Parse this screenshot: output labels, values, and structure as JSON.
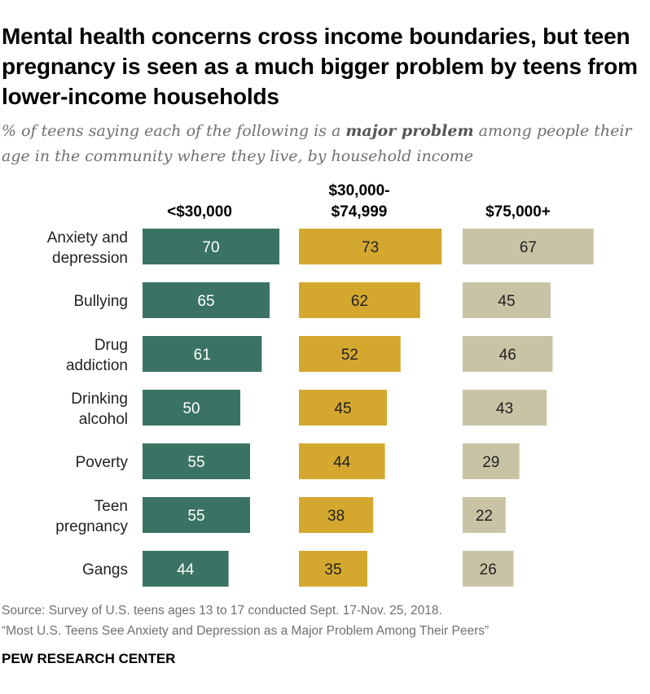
{
  "header": {
    "title": "Mental health concerns cross income boundaries, but teen pregnancy is seen as a much bigger problem by teens from lower-income households",
    "subtitle_pre": "% of teens saying each of the following is a ",
    "subtitle_emph": "major problem",
    "subtitle_post": " among people their age in the community where they live, by household income"
  },
  "footer": {
    "source_line1": "Source: Survey of U.S. teens ages 13 to 17 conducted Sept. 17-Nov. 25, 2018.",
    "source_line2": "“Most U.S. Teens See Anxiety and Depression as a Major Problem Among Their Peers”",
    "org": "PEW RESEARCH CENTER"
  },
  "chart_data": {
    "type": "bar",
    "orientation": "horizontal",
    "layout": "small-multiples",
    "categories": [
      [
        "Anxiety and",
        "depression"
      ],
      [
        "Bullying"
      ],
      [
        "Drug",
        "addiction"
      ],
      [
        "Drinking",
        "alcohol"
      ],
      [
        "Poverty"
      ],
      [
        "Teen",
        "pregnancy"
      ],
      [
        "Gangs"
      ]
    ],
    "series": [
      {
        "name": [
          "<$30,000"
        ],
        "color": "#3a7363",
        "label_color": "#ffffff",
        "values": [
          70,
          65,
          61,
          50,
          55,
          55,
          44
        ]
      },
      {
        "name": [
          "$30,000-",
          "$74,999"
        ],
        "color": "#d4a82f",
        "label_color": "#222222",
        "values": [
          73,
          62,
          52,
          45,
          44,
          38,
          35
        ]
      },
      {
        "name": [
          "$75,000+"
        ],
        "color": "#c9c3a5",
        "label_color": "#222222",
        "values": [
          67,
          45,
          46,
          43,
          29,
          22,
          26
        ]
      }
    ],
    "xlim": [
      0,
      100
    ],
    "grid": false,
    "legend": "column headers"
  }
}
